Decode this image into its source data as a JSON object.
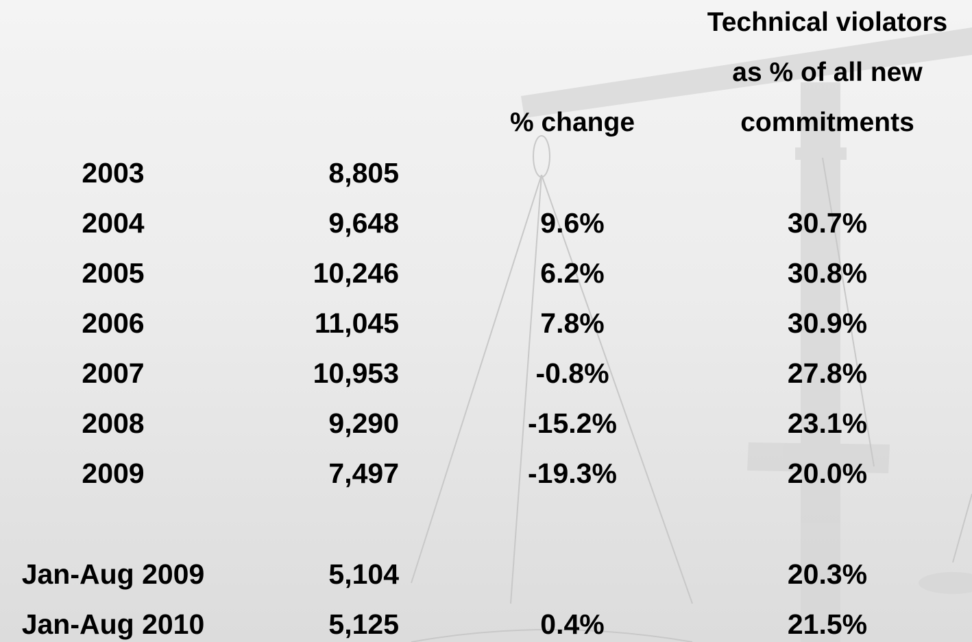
{
  "table": {
    "header": [
      null,
      null,
      "% change",
      [
        "Technical violators",
        "as % of all new",
        "commitments"
      ]
    ],
    "rows": [
      [
        "2003",
        "8,805",
        null,
        null
      ],
      [
        "2004",
        "9,648",
        "9.6%",
        "30.7%"
      ],
      [
        "2005",
        "10,246",
        "6.2%",
        "30.8%"
      ],
      [
        "2006",
        "11,045",
        "7.8%",
        "30.9%"
      ],
      [
        "2007",
        "10,953",
        "-0.8%",
        "27.8%"
      ],
      [
        "2008",
        "9,290",
        "-15.2%",
        "23.1%"
      ],
      [
        "2009",
        "7,497",
        "-19.3%",
        "20.0%"
      ],
      [
        "Jan-Aug 2009",
        "5,104",
        null,
        "20.3%"
      ],
      [
        "Jan-Aug 2010",
        "5,125",
        "0.4%",
        "21.5%"
      ]
    ]
  }
}
